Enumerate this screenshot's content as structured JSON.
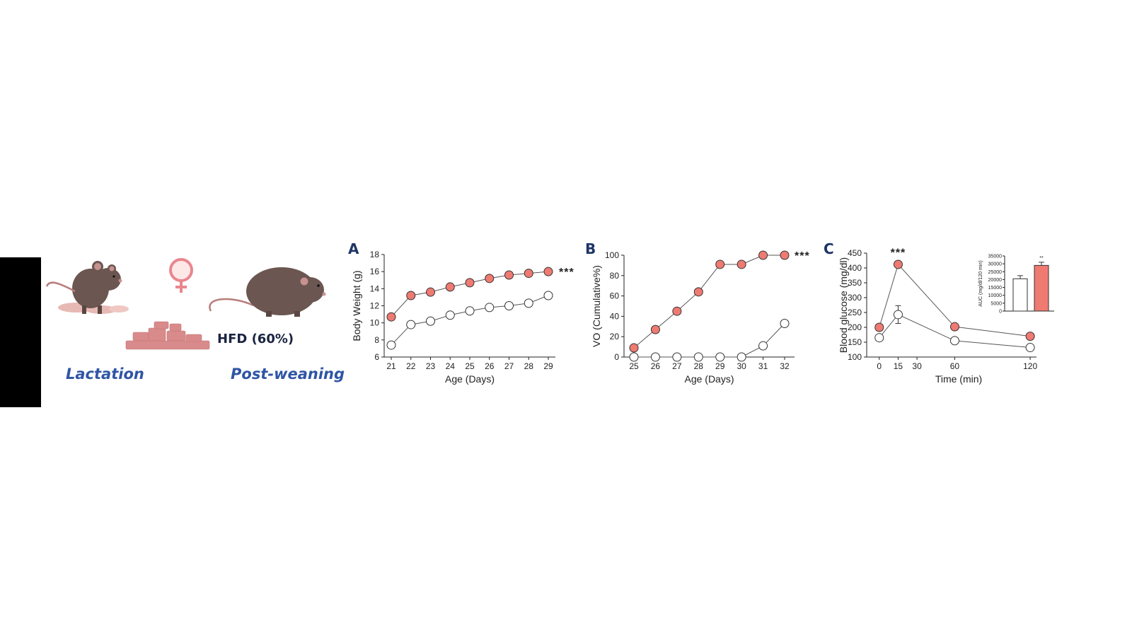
{
  "illustration": {
    "labels": {
      "lactation": "Lactation",
      "post_weaning": "Post-weaning",
      "diet": "HFD (60%)"
    },
    "icons": [
      "mother-mouse-with-pups-icon",
      "female-symbol-icon",
      "food-pellets-icon",
      "adult-mouse-icon"
    ],
    "colors": {
      "mouse": "#6b5651",
      "pellet": "#d98b8b",
      "female_symbol": "#e9868e",
      "label": "#2f55a4"
    }
  },
  "colors": {
    "hfd": "#ef7a72",
    "control": "#ffffff",
    "stroke": "#333333",
    "panel_letter": "#1f3566"
  },
  "chart_data": [
    {
      "id": "A",
      "panel": "A",
      "type": "line",
      "x": [
        21,
        22,
        23,
        24,
        25,
        26,
        27,
        28,
        29
      ],
      "series": [
        {
          "fill": "#ef7a72",
          "values": [
            10.7,
            13.2,
            13.6,
            14.2,
            14.7,
            15.2,
            15.6,
            15.8,
            16.0
          ]
        },
        {
          "fill": "#ffffff",
          "values": [
            7.4,
            9.8,
            10.2,
            10.9,
            11.4,
            11.8,
            12.0,
            12.3,
            13.2
          ]
        }
      ],
      "xlabel": "Age (Days)",
      "ylabel": "Body Weight (g)",
      "ylim": [
        6,
        18
      ],
      "yticks": [
        6,
        8,
        10,
        12,
        14,
        16,
        18
      ],
      "xticks": [
        21,
        22,
        23,
        24,
        25,
        26,
        27,
        28,
        29
      ],
      "significance": "***"
    },
    {
      "id": "B",
      "panel": "B",
      "type": "line",
      "x": [
        25,
        26,
        27,
        28,
        29,
        30,
        31,
        32
      ],
      "series": [
        {
          "fill": "#ef7a72",
          "values": [
            9,
            27,
            45,
            64,
            91,
            91,
            100,
            100
          ]
        },
        {
          "fill": "#ffffff",
          "values": [
            0,
            0,
            0,
            0,
            0,
            0,
            11,
            33
          ]
        }
      ],
      "xlabel": "Age (Days)",
      "ylabel": "VO (Cumulative%)",
      "ylim": [
        0,
        100
      ],
      "yticks": [
        0,
        20,
        40,
        60,
        80,
        100
      ],
      "xticks": [
        25,
        26,
        27,
        28,
        29,
        30,
        31,
        32
      ],
      "significance": "***"
    },
    {
      "id": "C",
      "panel": "C",
      "type": "line",
      "x": [
        0,
        15,
        60,
        120
      ],
      "series": [
        {
          "fill": "#ef7a72",
          "values": [
            200,
            412,
            202,
            170
          ]
        },
        {
          "fill": "#ffffff",
          "values": [
            165,
            243,
            155,
            132
          ],
          "error": [
            0,
            30,
            0,
            0
          ]
        }
      ],
      "xlabel": "Time (min)",
      "ylabel": "Blood glucose (mg/dl)",
      "ylim": [
        100,
        450
      ],
      "yticks": [
        100,
        150,
        200,
        250,
        300,
        350,
        400,
        450
      ],
      "xticks": [
        0,
        15,
        30,
        60,
        120
      ],
      "significance": "***",
      "inset": {
        "type": "bar",
        "ylabel": "AUC (mg/dl/120 min)",
        "ylim": [
          0,
          35000
        ],
        "yticks": [
          0,
          5000,
          10000,
          15000,
          20000,
          25000,
          30000,
          35000
        ],
        "bars": [
          {
            "fill": "#ffffff",
            "value": 20500,
            "error": 2000
          },
          {
            "fill": "#ef7a72",
            "value": 29000,
            "error": 2000
          }
        ],
        "significance": "**"
      }
    }
  ]
}
